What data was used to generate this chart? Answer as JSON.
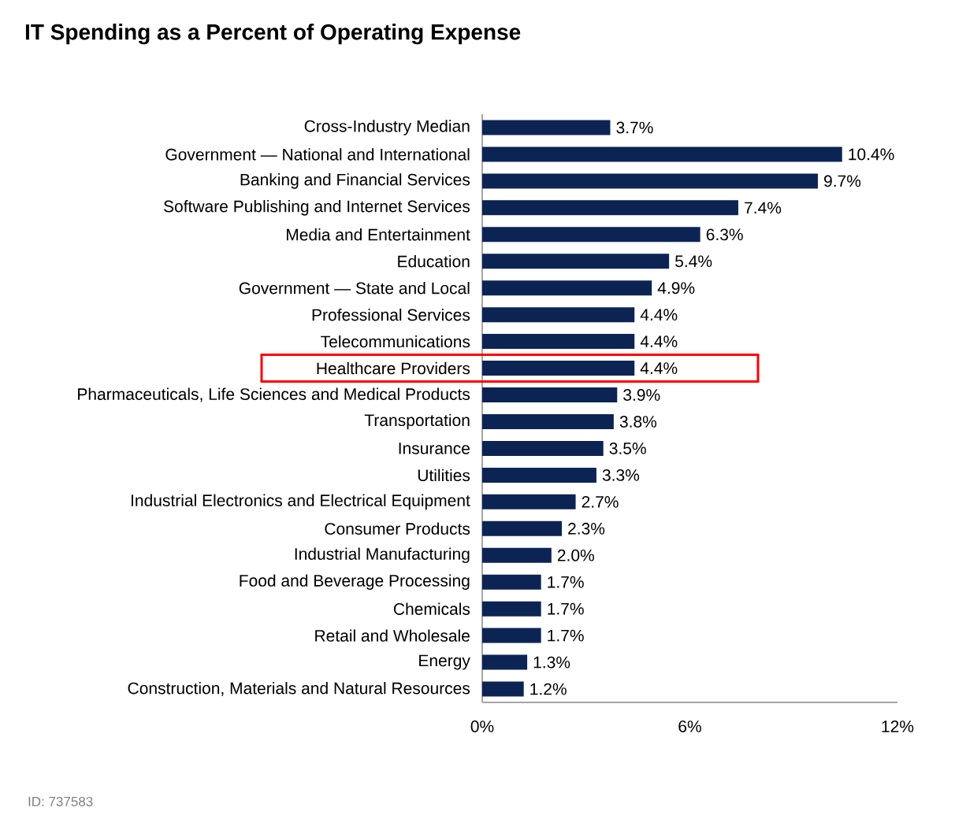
{
  "chart_data": {
    "type": "bar",
    "orientation": "horizontal",
    "title": "IT Spending as a Percent of Operating Expense",
    "categories": [
      "Cross-Industry Median",
      "Government — National and International",
      "Banking and Financial Services",
      "Software Publishing and Internet Services",
      "Media and Entertainment",
      "Education",
      "Government — State and Local",
      "Professional Services",
      "Telecommunications",
      "Healthcare Providers",
      "Pharmaceuticals, Life Sciences and Medical Products",
      "Transportation",
      "Insurance",
      "Utilities",
      "Industrial Electronics and Electrical Equipment",
      "Consumer Products",
      "Industrial Manufacturing",
      "Food and Beverage Processing",
      "Chemicals",
      "Retail and Wholesale",
      "Energy",
      "Construction, Materials and Natural Resources"
    ],
    "values": [
      3.7,
      10.4,
      9.7,
      7.4,
      6.3,
      5.4,
      4.9,
      4.4,
      4.4,
      4.4,
      3.9,
      3.8,
      3.5,
      3.3,
      2.7,
      2.3,
      2.0,
      1.7,
      1.7,
      1.7,
      1.3,
      1.2
    ],
    "value_labels": [
      "3.7%",
      "10.4%",
      "9.7%",
      "7.4%",
      "6.3%",
      "5.4%",
      "4.9%",
      "4.4%",
      "4.4%",
      "4.4%",
      "3.9%",
      "3.8%",
      "3.5%",
      "3.3%",
      "2.7%",
      "2.3%",
      "2.0%",
      "1.7%",
      "1.7%",
      "1.7%",
      "1.3%",
      "1.2%"
    ],
    "color": "#0c2453",
    "xlim": [
      0,
      12
    ],
    "xticks": [
      {
        "value": 0,
        "label": "0%"
      },
      {
        "value": 6,
        "label": "6%"
      },
      {
        "value": 12,
        "label": "12%"
      }
    ],
    "grid": false,
    "annotations": [
      "ID: 737583"
    ]
  }
}
